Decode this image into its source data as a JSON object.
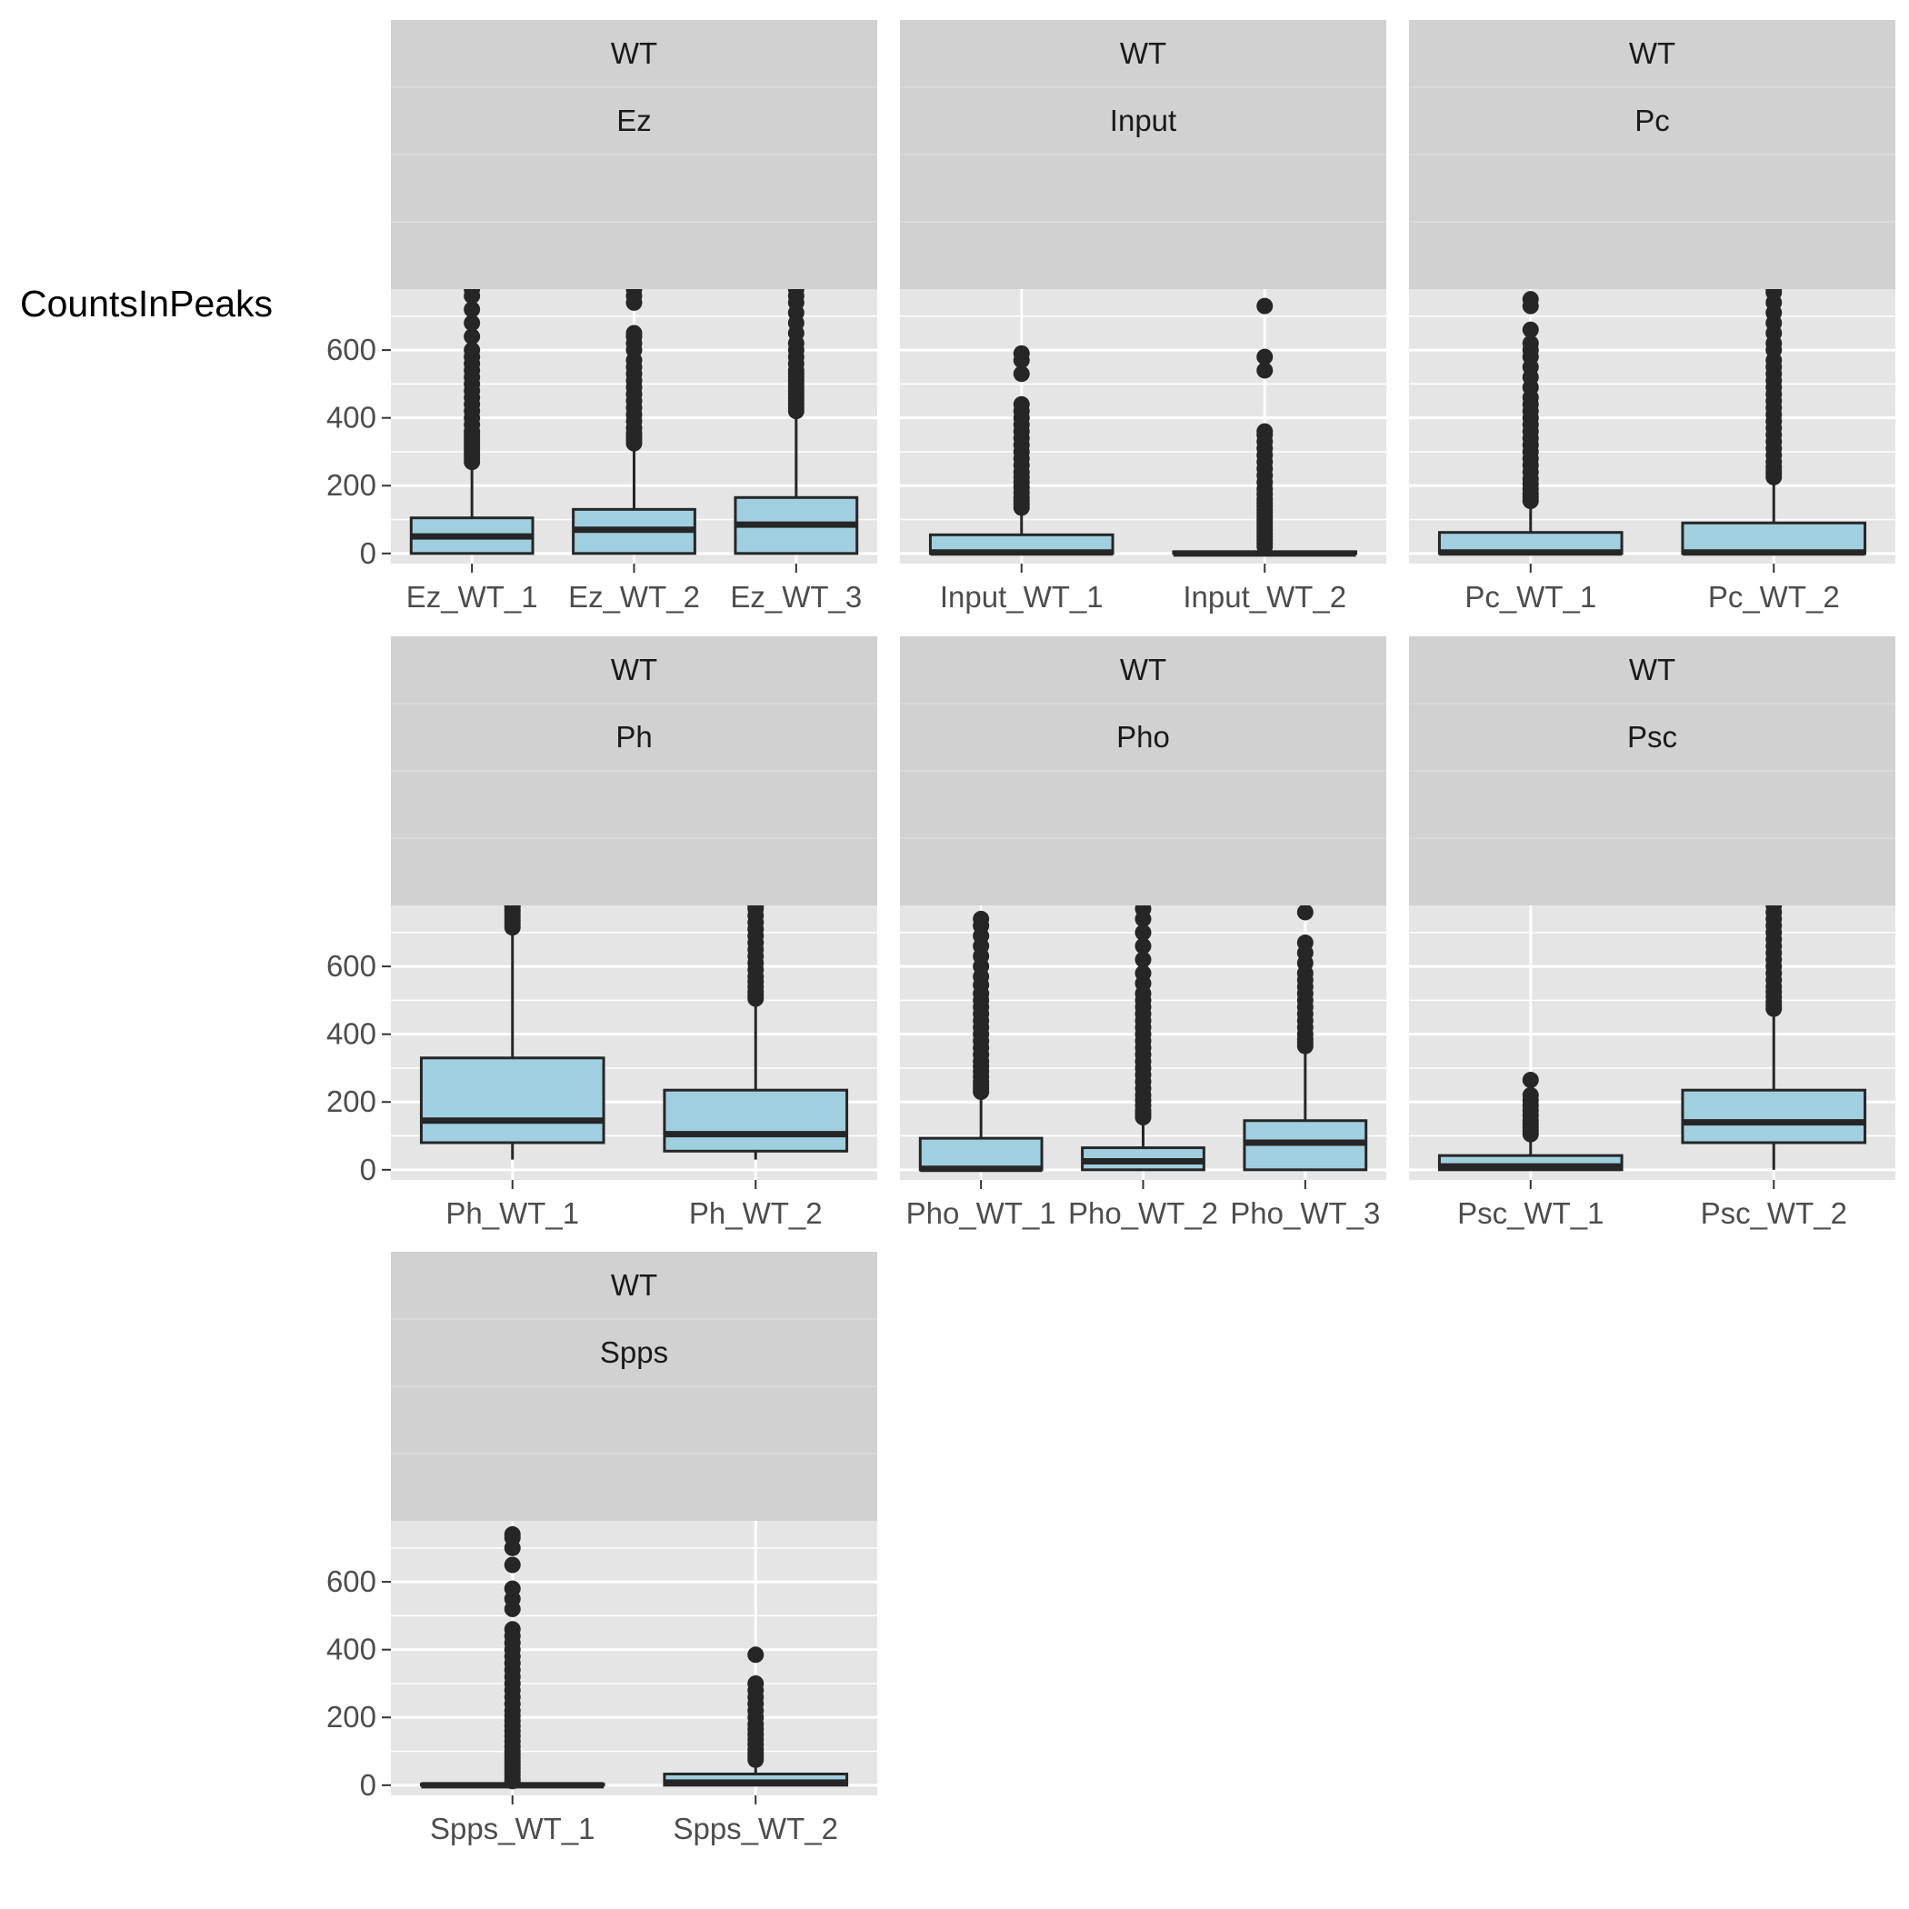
{
  "chart_data": {
    "type": "boxplot",
    "ylabel": "CountsInPeaks",
    "yticks": [
      0,
      200,
      400,
      600
    ],
    "ylim": [
      -30,
      780
    ],
    "colors": {
      "panel_bg": "#e5e5e5",
      "strip_bg": "#d1d1d1",
      "box_fill": "#a0d0e0",
      "line": "#262626",
      "grid": "#ffffff",
      "tick_text": "#4d4d4d"
    },
    "facets": [
      {
        "strip": [
          "WT",
          "Ez",
          "",
          ""
        ],
        "categories": [
          "Ez_WT_1",
          "Ez_WT_2",
          "Ez_WT_3"
        ],
        "boxes": [
          {
            "q1": 0,
            "median": 50,
            "q3": 105,
            "lower": 0,
            "upper": 260,
            "outliers": [
              270,
              280,
              290,
              300,
              310,
              320,
              330,
              340,
              350,
              360,
              380,
              400,
              420,
              440,
              460,
              480,
              500,
              520,
              540,
              560,
              580,
              600,
              640,
              680,
              720,
              760,
              780
            ]
          },
          {
            "q1": 0,
            "median": 70,
            "q3": 130,
            "lower": 0,
            "upper": 320,
            "outliers": [
              325,
              335,
              345,
              355,
              370,
              390,
              410,
              430,
              450,
              470,
              490,
              510,
              530,
              550,
              570,
              600,
              620,
              640,
              650,
              740,
              760,
              780
            ]
          },
          {
            "q1": 0,
            "median": 85,
            "q3": 165,
            "lower": 0,
            "upper": 410,
            "outliers": [
              420,
              430,
              440,
              450,
              460,
              470,
              480,
              490,
              500,
              510,
              520,
              530,
              540,
              560,
              580,
              600,
              620,
              650,
              680,
              710,
              740,
              760,
              780
            ]
          }
        ]
      },
      {
        "strip": [
          "WT",
          "Input",
          "",
          ""
        ],
        "categories": [
          "Input_WT_1",
          "Input_WT_2"
        ],
        "boxes": [
          {
            "q1": 0,
            "median": 3,
            "q3": 55,
            "lower": 0,
            "upper": 130,
            "outliers": [
              135,
              145,
              155,
              165,
              180,
              195,
              210,
              225,
              240,
              260,
              280,
              300,
              320,
              340,
              360,
              380,
              400,
              420,
              440,
              530,
              570,
              590
            ]
          },
          {
            "q1": 0,
            "median": 0,
            "q3": 5,
            "lower": 0,
            "upper": 12,
            "outliers": [
              20,
              30,
              40,
              50,
              60,
              70,
              80,
              90,
              100,
              110,
              120,
              130,
              140,
              150,
              160,
              175,
              190,
              210,
              230,
              250,
              270,
              290,
              310,
              330,
              350,
              360,
              540,
              580,
              730
            ]
          }
        ]
      },
      {
        "strip": [
          "WT",
          "Pc",
          "",
          ""
        ],
        "categories": [
          "Pc_WT_1",
          "Pc_WT_2"
        ],
        "boxes": [
          {
            "q1": 0,
            "median": 3,
            "q3": 62,
            "lower": 0,
            "upper": 150,
            "outliers": [
              155,
              165,
              175,
              190,
              205,
              220,
              240,
              260,
              280,
              300,
              320,
              340,
              360,
              380,
              400,
              420,
              440,
              460,
              490,
              520,
              550,
              580,
              600,
              620,
              660,
              730,
              750
            ]
          },
          {
            "q1": 0,
            "median": 3,
            "q3": 90,
            "lower": 0,
            "upper": 220,
            "outliers": [
              225,
              235,
              245,
              255,
              270,
              290,
              310,
              330,
              350,
              370,
              390,
              410,
              430,
              450,
              470,
              490,
              510,
              530,
              550,
              570,
              600,
              620,
              650,
              680,
              710,
              740,
              770,
              780
            ]
          }
        ]
      },
      {
        "strip": [
          "WT",
          "Ph",
          "",
          ""
        ],
        "categories": [
          "Ph_WT_1",
          "Ph_WT_2"
        ],
        "boxes": [
          {
            "q1": 80,
            "median": 145,
            "q3": 330,
            "lower": 30,
            "upper": 710,
            "outliers": [
              715,
              725,
              735,
              745,
              755,
              765,
              775,
              780
            ]
          },
          {
            "q1": 55,
            "median": 105,
            "q3": 235,
            "lower": 30,
            "upper": 500,
            "outliers": [
              505,
              515,
              525,
              540,
              555,
              570,
              590,
              610,
              630,
              650,
              670,
              690,
              710,
              730,
              750,
              770,
              780
            ]
          }
        ]
      },
      {
        "strip": [
          "WT",
          "Pho",
          "",
          ""
        ],
        "categories": [
          "Pho_WT_1",
          "Pho_WT_2",
          "Pho_WT_3"
        ],
        "boxes": [
          {
            "q1": 0,
            "median": 3,
            "q3": 93,
            "lower": 0,
            "upper": 225,
            "outliers": [
              230,
              240,
              250,
              260,
              275,
              290,
              305,
              320,
              340,
              360,
              380,
              400,
              420,
              440,
              460,
              480,
              500,
              520,
              545,
              570,
              600,
              630,
              660,
              690,
              720,
              740
            ]
          },
          {
            "q1": 0,
            "median": 25,
            "q3": 65,
            "lower": 0,
            "upper": 150,
            "outliers": [
              155,
              165,
              175,
              190,
              205,
              220,
              240,
              260,
              280,
              300,
              320,
              340,
              360,
              380,
              400,
              420,
              440,
              460,
              480,
              500,
              520,
              550,
              580,
              620,
              660,
              700,
              740,
              770
            ]
          },
          {
            "q1": 0,
            "median": 80,
            "q3": 145,
            "lower": 0,
            "upper": 360,
            "outliers": [
              365,
              375,
              385,
              400,
              420,
              440,
              460,
              480,
              500,
              520,
              540,
              560,
              580,
              610,
              640,
              670,
              760
            ]
          }
        ]
      },
      {
        "strip": [
          "WT",
          "Psc",
          "",
          ""
        ],
        "categories": [
          "Psc_WT_1",
          "Psc_WT_2"
        ],
        "boxes": [
          {
            "q1": 0,
            "median": 10,
            "q3": 42,
            "lower": 0,
            "upper": 100,
            "outliers": [
              105,
              115,
              125,
              135,
              145,
              160,
              175,
              190,
              205,
              220,
              265
            ]
          },
          {
            "q1": 80,
            "median": 140,
            "q3": 235,
            "lower": 0,
            "upper": 470,
            "outliers": [
              475,
              485,
              495,
              510,
              525,
              540,
              560,
              580,
              600,
              620,
              640,
              660,
              680,
              700,
              720,
              740,
              760,
              780
            ]
          }
        ]
      },
      {
        "strip": [
          "WT",
          "Spps",
          "",
          ""
        ],
        "categories": [
          "Spps_WT_1",
          "Spps_WT_2"
        ],
        "boxes": [
          {
            "q1": 0,
            "median": 0,
            "q3": 3,
            "lower": 0,
            "upper": 8,
            "outliers": [
              12,
              20,
              30,
              40,
              50,
              60,
              70,
              80,
              90,
              100,
              115,
              130,
              145,
              160,
              175,
              190,
              205,
              220,
              240,
              260,
              280,
              300,
              320,
              340,
              360,
              380,
              400,
              420,
              440,
              460,
              520,
              550,
              580,
              650,
              700,
              730,
              740
            ]
          },
          {
            "q1": 0,
            "median": 8,
            "q3": 33,
            "lower": 0,
            "upper": 70,
            "outliers": [
              75,
              85,
              95,
              105,
              120,
              135,
              150,
              165,
              180,
              200,
              220,
              240,
              260,
              280,
              300,
              385
            ]
          }
        ]
      }
    ]
  }
}
